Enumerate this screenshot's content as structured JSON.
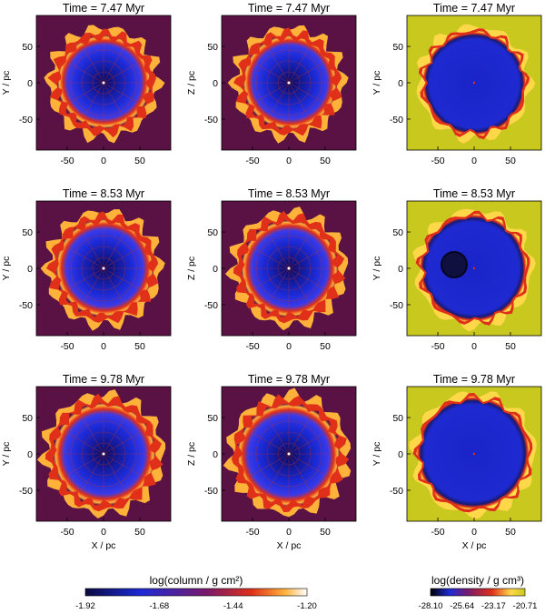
{
  "colors": {
    "background_outer": "#5a1244",
    "background_density": "#c8c81e",
    "interior_blue": "#1e2ad0",
    "shell_red": "#e0301a",
    "shell_yellow": "#ffd84a"
  },
  "rows": [
    {
      "time": "Time = 7.47 Myr"
    },
    {
      "time": "Time = 8.53 Myr"
    },
    {
      "time": "Time = 9.78 Myr"
    }
  ],
  "columns": [
    {
      "ylabel": "Y / pc",
      "kind": "column"
    },
    {
      "ylabel": "Z / pc",
      "kind": "column"
    },
    {
      "ylabel": "Y / pc",
      "kind": "density"
    }
  ],
  "axes": {
    "xlabel": "X / pc",
    "yticks": [
      "50",
      "0",
      "-50"
    ],
    "xticks": [
      "-50",
      "0",
      "50"
    ]
  },
  "colorbars": {
    "column": {
      "label": "log(column / g cm²)",
      "ticks": [
        "-1.92",
        "-1.68",
        "-1.44",
        "-1.20"
      ]
    },
    "density": {
      "label": "log(density / g cm³)",
      "ticks": [
        "-28.10",
        "-25.64",
        "-23.17",
        "-20.71"
      ]
    }
  }
}
